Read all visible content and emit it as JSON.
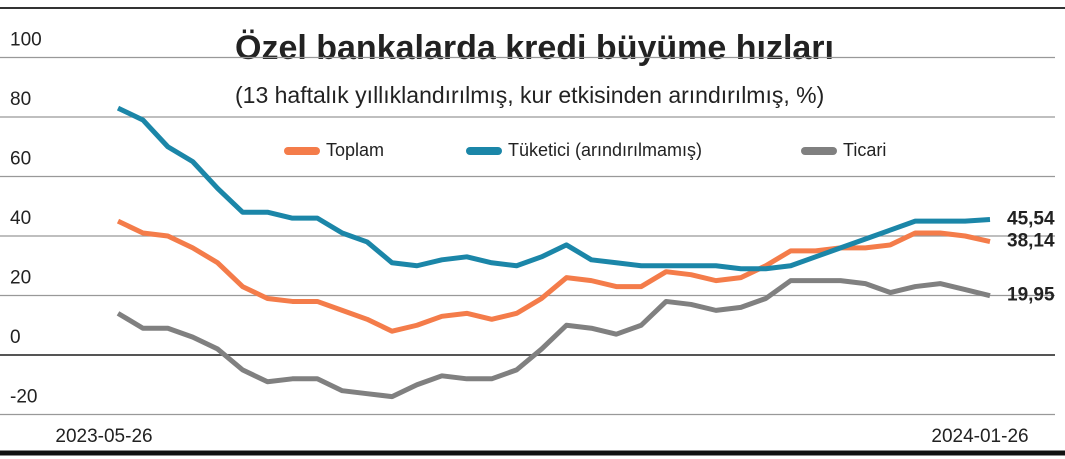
{
  "chart_data": {
    "type": "line",
    "title": "Özel bankalarda kredi büyüme hızları",
    "subtitle": "(13 haftalık yıllıklandırılmış, kur etkisinden arındırılmış, %)",
    "categories": [
      "2023-05-26",
      null,
      null,
      null,
      null,
      null,
      null,
      null,
      null,
      null,
      null,
      null,
      null,
      null,
      null,
      null,
      null,
      null,
      null,
      null,
      null,
      null,
      null,
      null,
      null,
      null,
      null,
      null,
      null,
      null,
      null,
      null,
      null,
      null,
      null,
      "2024-01-26"
    ],
    "series": [
      {
        "name": "Toplam",
        "color": "#f47c4a",
        "values": [
          45,
          41,
          40,
          36,
          31,
          23,
          19,
          18,
          18,
          15,
          12,
          8,
          10,
          13,
          14,
          12,
          14,
          19,
          26,
          25,
          23,
          23,
          28,
          27,
          25,
          26,
          30,
          35,
          35,
          36,
          36,
          37,
          41,
          41,
          40,
          38.14
        ],
        "value_labels": [
          null,
          null,
          null,
          null,
          null,
          null,
          null,
          null,
          null,
          null,
          null,
          null,
          null,
          null,
          null,
          null,
          null,
          null,
          null,
          null,
          null,
          null,
          null,
          null,
          null,
          null,
          null,
          null,
          null,
          null,
          null,
          null,
          null,
          null,
          null,
          "38,14"
        ]
      },
      {
        "name": "Tüketici (arındırılmamış)",
        "color": "#1b86a8",
        "values": [
          83,
          79,
          70,
          65,
          56,
          48,
          48,
          46,
          46,
          41,
          38,
          31,
          30,
          32,
          33,
          31,
          30,
          33,
          37,
          32,
          31,
          30,
          30,
          30,
          30,
          29,
          29,
          30,
          33,
          36,
          39,
          42,
          45,
          45,
          45,
          45.54
        ],
        "value_labels": [
          null,
          null,
          null,
          null,
          null,
          null,
          null,
          null,
          null,
          null,
          null,
          null,
          null,
          null,
          null,
          null,
          null,
          null,
          null,
          null,
          null,
          null,
          null,
          null,
          null,
          null,
          null,
          null,
          null,
          null,
          null,
          null,
          null,
          null,
          null,
          "45,54"
        ]
      },
      {
        "name": "Ticari",
        "color": "#808080",
        "values": [
          14,
          9,
          9,
          6,
          2,
          -5,
          -9,
          -8,
          -8,
          -12,
          -13,
          -14,
          -10,
          -7,
          -8,
          -8,
          -5,
          2,
          10,
          9,
          7,
          10,
          18,
          17,
          15,
          16,
          19,
          25,
          25,
          25,
          24,
          21,
          23,
          24,
          22,
          19.95
        ],
        "value_labels": [
          null,
          null,
          null,
          null,
          null,
          null,
          null,
          null,
          null,
          null,
          null,
          null,
          null,
          null,
          null,
          null,
          null,
          null,
          null,
          null,
          null,
          null,
          null,
          null,
          null,
          null,
          null,
          null,
          null,
          null,
          null,
          null,
          null,
          null,
          null,
          "19,95"
        ]
      }
    ],
    "ylim": [
      -20,
      100
    ],
    "yticks": [
      -20,
      0,
      20,
      40,
      60,
      80,
      100
    ],
    "grid": true
  }
}
